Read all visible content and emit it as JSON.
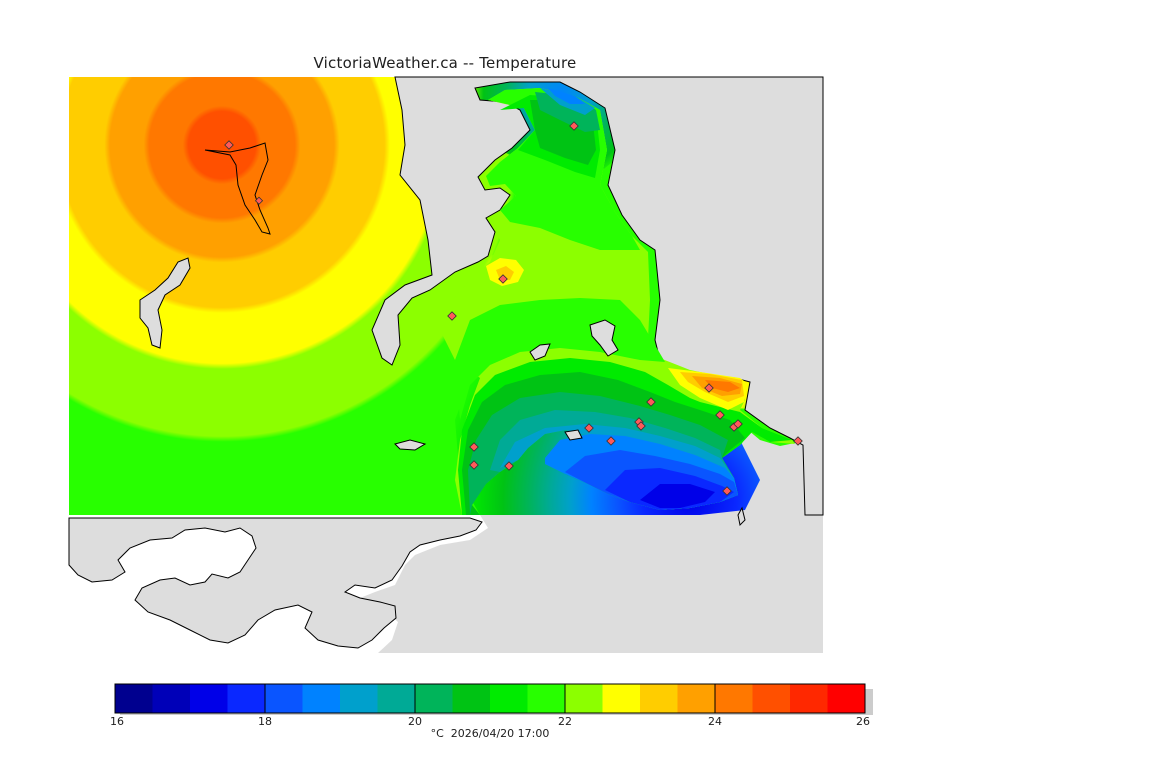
{
  "title": "VictoriaWeather.ca -- Temperature",
  "legend": {
    "unit": "°C",
    "timestamp": "2026/04/20 17:00",
    "min": 16,
    "max": 26,
    "ticks": [
      "16",
      "18",
      "20",
      "22",
      "24",
      "26"
    ],
    "colors": [
      "#00008f",
      "#0000b8",
      "#0000e8",
      "#0a28ff",
      "#0a55ff",
      "#0082ff",
      "#00a0cc",
      "#00aa96",
      "#00b45a",
      "#00c314",
      "#00eb00",
      "#28ff00",
      "#8cff00",
      "#ffff00",
      "#ffcd00",
      "#ffa000",
      "#ff7800",
      "#ff5000",
      "#ff2800",
      "#ff0000"
    ]
  },
  "map": {
    "colors": {
      "land_background": "#dddddd",
      "water_background": "#ffffff",
      "coastline": "#000000",
      "station_marker": "#ff5a5a"
    },
    "station_count": 19
  }
}
